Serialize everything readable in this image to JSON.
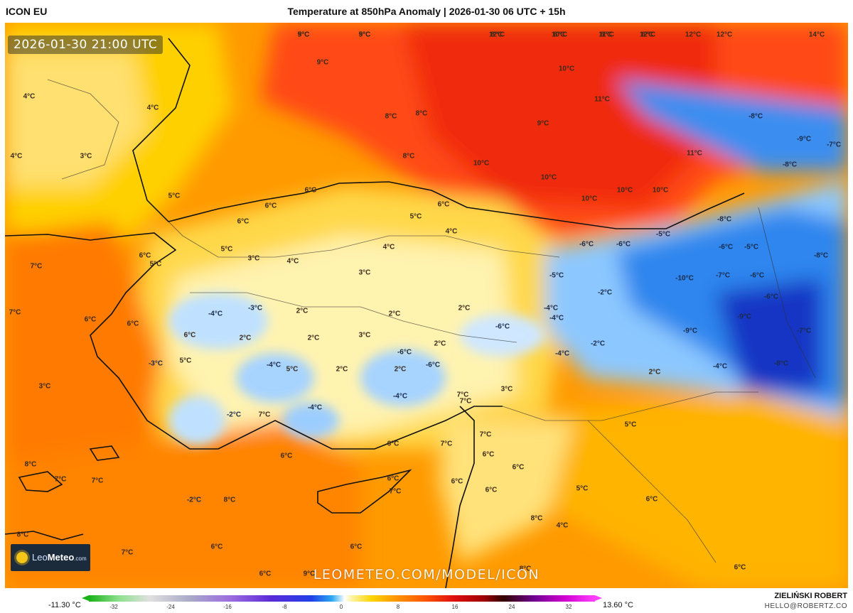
{
  "header": {
    "model": "ICON EU",
    "title": "Temperature at 850hPa Anomaly | 2026-01-30 06 UTC + 15h"
  },
  "map": {
    "valid_time": "2026-01-30 21:00 UTC",
    "watermark": "LEOMETEO.COM/MODEL/ICON",
    "logo": {
      "brand_part1": "Leo",
      "brand_part2": "Meteo",
      "brand_domain": ".com"
    },
    "labels": [
      {
        "text": "9°C",
        "kind": "warm"
      },
      {
        "text": "9°C",
        "kind": "warm"
      },
      {
        "text": "12°C",
        "kind": "warm"
      },
      {
        "text": "10°C",
        "kind": "warm"
      },
      {
        "text": "11°C",
        "kind": "warm"
      },
      {
        "text": "12°C",
        "kind": "warm"
      },
      {
        "text": "12°C",
        "kind": "warm"
      },
      {
        "text": "12°C",
        "kind": "warm"
      },
      {
        "text": "14°C",
        "kind": "warm"
      },
      {
        "text": "9°C",
        "kind": "warm"
      },
      {
        "text": "10°C",
        "kind": "warm"
      },
      {
        "text": "11°C",
        "kind": "warm"
      },
      {
        "text": "8°C",
        "kind": "warm"
      },
      {
        "text": "8°C",
        "kind": "warm"
      },
      {
        "text": "9°C",
        "kind": "warm"
      },
      {
        "text": "8°C",
        "kind": "warm"
      },
      {
        "text": "10°C",
        "kind": "warm"
      },
      {
        "text": "10°C",
        "kind": "warm"
      },
      {
        "text": "10°C",
        "kind": "warm"
      },
      {
        "text": "10°C",
        "kind": "warm"
      },
      {
        "text": "10°C",
        "kind": "warm"
      },
      {
        "text": "11°C",
        "kind": "warm"
      },
      {
        "text": "4°C",
        "kind": "warm"
      },
      {
        "text": "4°C",
        "kind": "warm"
      },
      {
        "text": "4°C",
        "kind": "warm"
      },
      {
        "text": "3°C",
        "kind": "warm"
      },
      {
        "text": "5°C",
        "kind": "warm"
      },
      {
        "text": "6°C",
        "kind": "warm"
      },
      {
        "text": "6°C",
        "kind": "warm"
      },
      {
        "text": "6°C",
        "kind": "warm"
      },
      {
        "text": "5°C",
        "kind": "warm"
      },
      {
        "text": "6°C",
        "kind": "warm"
      },
      {
        "text": "4°C",
        "kind": "warm"
      },
      {
        "text": "4°C",
        "kind": "warm"
      },
      {
        "text": "5°C",
        "kind": "warm"
      },
      {
        "text": "3°C",
        "kind": "warm"
      },
      {
        "text": "4°C",
        "kind": "warm"
      },
      {
        "text": "3°C",
        "kind": "warm"
      },
      {
        "text": "6°C",
        "kind": "warm"
      },
      {
        "text": "5°C",
        "kind": "warm"
      },
      {
        "text": "7°C",
        "kind": "warm"
      },
      {
        "text": "7°C",
        "kind": "warm"
      },
      {
        "text": "6°C",
        "kind": "warm"
      },
      {
        "text": "6°C",
        "kind": "warm"
      },
      {
        "text": "-4°C",
        "kind": "cold"
      },
      {
        "text": "-3°C",
        "kind": "cold"
      },
      {
        "text": "2°C",
        "kind": "warm"
      },
      {
        "text": "2°C",
        "kind": "warm"
      },
      {
        "text": "2°C",
        "kind": "warm"
      },
      {
        "text": "2°C",
        "kind": "warm"
      },
      {
        "text": "3°C",
        "kind": "warm"
      },
      {
        "text": "2°C",
        "kind": "warm"
      },
      {
        "text": "3°C",
        "kind": "warm"
      },
      {
        "text": "-3°C",
        "kind": "cold"
      },
      {
        "text": "5°C",
        "kind": "warm"
      },
      {
        "text": "5°C",
        "kind": "warm"
      },
      {
        "text": "2°C",
        "kind": "warm"
      },
      {
        "text": "-4°C",
        "kind": "cold"
      },
      {
        "text": "2°C",
        "kind": "warm"
      },
      {
        "text": "2°C",
        "kind": "warm"
      },
      {
        "text": "-6°C",
        "kind": "cold"
      },
      {
        "text": "-6°C",
        "kind": "cold"
      },
      {
        "text": "-4°C",
        "kind": "cold"
      },
      {
        "text": "-2°C",
        "kind": "cold"
      },
      {
        "text": "-4°C",
        "kind": "cold"
      },
      {
        "text": "7°C",
        "kind": "warm"
      },
      {
        "text": "3°C",
        "kind": "warm"
      },
      {
        "text": "-6°C",
        "kind": "cold"
      },
      {
        "text": "-5°C",
        "kind": "cold"
      },
      {
        "text": "-4°C",
        "kind": "cold"
      },
      {
        "text": "-2°C",
        "kind": "cold"
      },
      {
        "text": "-4°C",
        "kind": "cold"
      },
      {
        "text": "-4°C",
        "kind": "cold"
      },
      {
        "text": "-2°C",
        "kind": "cold"
      },
      {
        "text": "2°C",
        "kind": "warm"
      },
      {
        "text": "-6°C",
        "kind": "cold"
      },
      {
        "text": "-6°C",
        "kind": "cold"
      },
      {
        "text": "-5°C",
        "kind": "cold"
      },
      {
        "text": "-8°C",
        "kind": "cold"
      },
      {
        "text": "-5°C",
        "kind": "cold"
      },
      {
        "text": "-6°C",
        "kind": "cold"
      },
      {
        "text": "-6°C",
        "kind": "cold"
      },
      {
        "text": "-8°C",
        "kind": "cold"
      },
      {
        "text": "-10°C",
        "kind": "cold"
      },
      {
        "text": "-7°C",
        "kind": "cold"
      },
      {
        "text": "-6°C",
        "kind": "cold"
      },
      {
        "text": "-9°C",
        "kind": "cold"
      },
      {
        "text": "-7°C",
        "kind": "cold"
      },
      {
        "text": "-8°C",
        "kind": "cold"
      },
      {
        "text": "-9°C",
        "kind": "cold"
      },
      {
        "text": "-4°C",
        "kind": "cold"
      },
      {
        "text": "-7°C",
        "kind": "cold"
      },
      {
        "text": "-9°C",
        "kind": "cold"
      },
      {
        "text": "-8°C",
        "kind": "cold"
      },
      {
        "text": "-8°C",
        "kind": "cold"
      },
      {
        "text": "5°C",
        "kind": "warm"
      },
      {
        "text": "6°C",
        "kind": "warm"
      },
      {
        "text": "7°C",
        "kind": "warm"
      },
      {
        "text": "6°C",
        "kind": "warm"
      },
      {
        "text": "5°C",
        "kind": "warm"
      },
      {
        "text": "6°C",
        "kind": "warm"
      },
      {
        "text": "8°C",
        "kind": "warm"
      },
      {
        "text": "4°C",
        "kind": "warm"
      },
      {
        "text": "6°C",
        "kind": "warm"
      },
      {
        "text": "6°C",
        "kind": "warm"
      },
      {
        "text": "6°C",
        "kind": "warm"
      },
      {
        "text": "7°C",
        "kind": "warm"
      },
      {
        "text": "7°C",
        "kind": "warm"
      },
      {
        "text": "7°C",
        "kind": "warm"
      },
      {
        "text": "6°C",
        "kind": "warm"
      },
      {
        "text": "6°C",
        "kind": "warm"
      },
      {
        "text": "8°C",
        "kind": "warm"
      },
      {
        "text": "7°C",
        "kind": "warm"
      },
      {
        "text": "7°C",
        "kind": "warm"
      },
      {
        "text": "-2°C",
        "kind": "cold"
      },
      {
        "text": "8°C",
        "kind": "warm"
      },
      {
        "text": "7°C",
        "kind": "warm"
      },
      {
        "text": "8°C",
        "kind": "warm"
      },
      {
        "text": "7°C",
        "kind": "warm"
      },
      {
        "text": "6°C",
        "kind": "warm"
      },
      {
        "text": "6°C",
        "kind": "warm"
      },
      {
        "text": "6°C",
        "kind": "warm"
      },
      {
        "text": "9°C",
        "kind": "warm"
      },
      {
        "text": "8°C",
        "kind": "warm"
      },
      {
        "text": "6°C",
        "kind": "warm"
      },
      {
        "text": "6°C",
        "kind": "warm"
      },
      {
        "text": "5°C",
        "kind": "warm"
      },
      {
        "text": "5°C",
        "kind": "warm"
      },
      {
        "text": "8°C",
        "kind": "warm"
      },
      {
        "text": "6°C",
        "kind": "warm"
      },
      {
        "text": "6°C",
        "kind": "warm"
      },
      {
        "text": "6°C",
        "kind": "warm"
      }
    ]
  },
  "colorbar": {
    "min_label": "-11.30 °C",
    "max_label": "13.60 °C",
    "ticks": [
      "-32",
      "-24",
      "-16",
      "-8",
      "0",
      "8",
      "16",
      "24",
      "32"
    ]
  },
  "footer": {
    "author": "ZIELIŃSKI ROBERT",
    "contact": "HELLO@ROBERTZ.CO"
  },
  "colors": {
    "warm_strong": "#ff3a1a",
    "warm": "#ff8c00",
    "mild": "#ffd000",
    "neutral": "#fff6c8",
    "cool": "#d6ecff",
    "cold": "#3c8ff0",
    "very_cold": "#1a3fcf"
  }
}
